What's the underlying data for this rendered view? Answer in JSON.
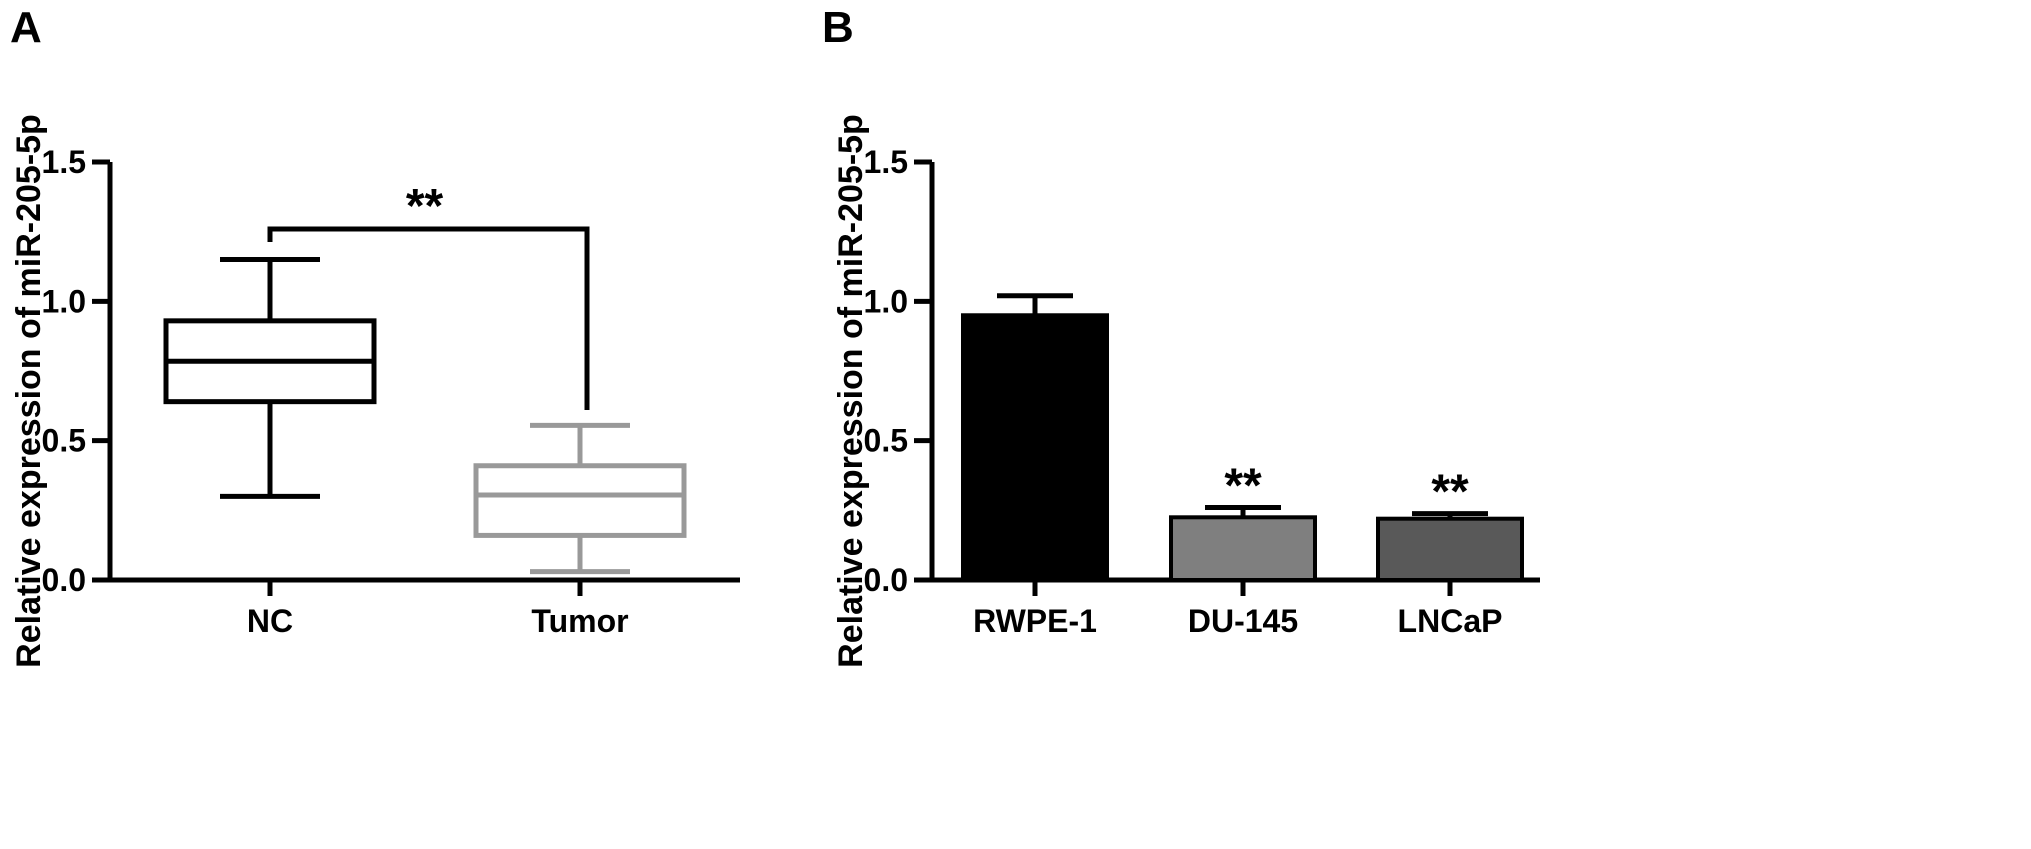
{
  "chart_data": [
    {
      "panel": "A",
      "type": "box",
      "ylabel": "Relative expression of miR-205-5p",
      "ylim": [
        0,
        1.5
      ],
      "yticks": [
        "0.0",
        "0.5",
        "1.0",
        "1.5"
      ],
      "categories": [
        "NC",
        "Tumor"
      ],
      "boxes": [
        {
          "category": "NC",
          "min": 0.3,
          "q1": 0.64,
          "median": 0.785,
          "q3": 0.93,
          "max": 1.15,
          "color": "#000000"
        },
        {
          "category": "Tumor",
          "min": 0.03,
          "q1": 0.16,
          "median": 0.305,
          "q3": 0.41,
          "max": 0.555,
          "color": "#999999"
        }
      ],
      "significance": {
        "label": "**",
        "between": [
          "NC",
          "Tumor"
        ]
      }
    },
    {
      "panel": "B",
      "type": "bar",
      "ylabel": "Relative expression of miR-205-5p",
      "ylim": [
        0,
        1.5
      ],
      "yticks": [
        "0.0",
        "0.5",
        "1.0",
        "1.5"
      ],
      "categories": [
        "RWPE-1",
        "DU-145",
        "LNCaP"
      ],
      "values": [
        0.95,
        0.225,
        0.22
      ],
      "errors": [
        0.07,
        0.035,
        0.018
      ],
      "colors": [
        "#000000",
        "#7f7f7f",
        "#595959"
      ],
      "significance_labels": [
        "",
        "**",
        "**"
      ]
    }
  ]
}
